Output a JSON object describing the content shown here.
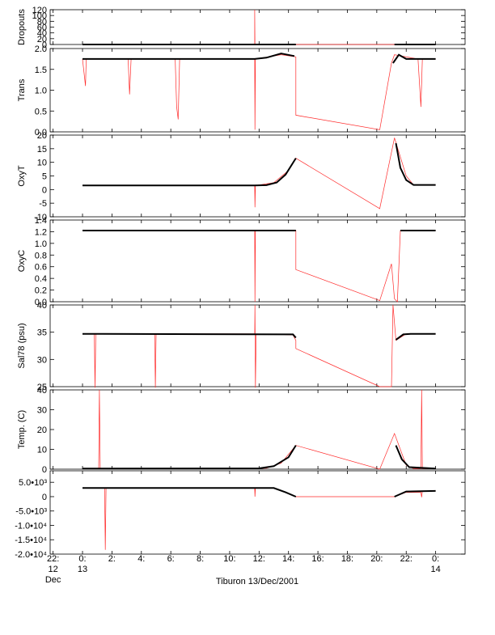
{
  "chart_data": {
    "type": "line",
    "title": "Tiburon 13/Dec/2001",
    "x_ticks": [
      {
        "h": -2,
        "line1": "22:",
        "line2": "12",
        "line3": "Dec"
      },
      {
        "h": 0,
        "line1": "0:",
        "line2": "13",
        "line3": ""
      },
      {
        "h": 2,
        "line1": "2:",
        "line2": "",
        "line3": ""
      },
      {
        "h": 4,
        "line1": "4:",
        "line2": "",
        "line3": ""
      },
      {
        "h": 6,
        "line1": "6:",
        "line2": "",
        "line3": ""
      },
      {
        "h": 8,
        "line1": "8:",
        "line2": "",
        "line3": ""
      },
      {
        "h": 10,
        "line1": "10:",
        "line2": "",
        "line3": ""
      },
      {
        "h": 12,
        "line1": "12:",
        "line2": "",
        "line3": ""
      },
      {
        "h": 14,
        "line1": "14:",
        "line2": "",
        "line3": ""
      },
      {
        "h": 16,
        "line1": "16:",
        "line2": "",
        "line3": ""
      },
      {
        "h": 18,
        "line1": "18:",
        "line2": "",
        "line3": ""
      },
      {
        "h": 20,
        "line1": "20:",
        "line2": "",
        "line3": ""
      },
      {
        "h": 22,
        "line1": "22:",
        "line2": "",
        "line3": ""
      },
      {
        "h": 24,
        "line1": "0:",
        "line2": "14",
        "line3": ""
      }
    ],
    "xlim": [
      -2.2,
      26
    ],
    "panels": [
      {
        "name": "dropouts",
        "ylabel": "Dropouts",
        "ylim": [
          0,
          120
        ],
        "ytick_labels": [
          "0",
          "20",
          "40",
          "60",
          "80",
          "100",
          "120"
        ],
        "ytick_values": [
          0,
          20,
          40,
          60,
          80,
          100,
          120
        ],
        "red": [
          [
            0,
            0
          ],
          [
            11.7,
            0
          ],
          [
            11.7,
            120
          ],
          [
            11.72,
            0
          ],
          [
            24,
            0
          ]
        ],
        "black": [
          [
            0,
            0
          ],
          [
            14.5,
            0
          ]
        ],
        "black2": [
          [
            21.2,
            0
          ],
          [
            24,
            0
          ]
        ]
      },
      {
        "name": "trans",
        "ylabel": "Trans",
        "ylim": [
          0,
          2
        ],
        "ytick_labels": [
          "0.0",
          "0.5",
          "1.0",
          "1.5",
          "2.0"
        ],
        "ytick_values": [
          0,
          0.5,
          1,
          1.5,
          2
        ],
        "red": [
          [
            0,
            1.75
          ],
          [
            0.2,
            1.1
          ],
          [
            0.25,
            1.75
          ],
          [
            3.1,
            1.75
          ],
          [
            3.2,
            0.9
          ],
          [
            3.3,
            1.75
          ],
          [
            6.3,
            1.75
          ],
          [
            6.4,
            0.6
          ],
          [
            6.5,
            0.3
          ],
          [
            6.6,
            1.75
          ],
          [
            11.7,
            1.75
          ],
          [
            11.72,
            0.05
          ],
          [
            11.75,
            1.75
          ],
          [
            13.5,
            1.85
          ],
          [
            14.5,
            1.8
          ],
          [
            14.5,
            0.4
          ],
          [
            20.2,
            0.05
          ],
          [
            21.0,
            1.65
          ],
          [
            21.2,
            1.85
          ],
          [
            22.8,
            1.75
          ],
          [
            23.0,
            0.6
          ],
          [
            23.1,
            1.75
          ],
          [
            24,
            1.75
          ]
        ],
        "black": [
          [
            0,
            1.75
          ],
          [
            11.7,
            1.75
          ],
          [
            12.5,
            1.78
          ],
          [
            13.5,
            1.88
          ],
          [
            14.4,
            1.82
          ]
        ],
        "black2": [
          [
            21.1,
            1.65
          ],
          [
            21.5,
            1.85
          ],
          [
            22,
            1.75
          ],
          [
            24,
            1.75
          ]
        ]
      },
      {
        "name": "oxyt",
        "ylabel": "OxyT",
        "ylim": [
          -10,
          20
        ],
        "ytick_labels": [
          "-10",
          "-5",
          "0",
          "5",
          "10",
          "15",
          "20"
        ],
        "ytick_values": [
          -10,
          -5,
          0,
          5,
          10,
          15,
          20
        ],
        "red": [
          [
            0,
            1.5
          ],
          [
            11.7,
            1.5
          ],
          [
            11.72,
            -6.5
          ],
          [
            11.75,
            1.5
          ],
          [
            13,
            2.5
          ],
          [
            14,
            7
          ],
          [
            14.5,
            11.5
          ],
          [
            20.2,
            -7
          ],
          [
            21.2,
            19
          ],
          [
            22,
            5
          ],
          [
            22.5,
            1.7
          ],
          [
            24,
            1.7
          ]
        ],
        "black": [
          [
            0,
            1.5
          ],
          [
            11.7,
            1.5
          ],
          [
            12.5,
            1.6
          ],
          [
            13.2,
            2.6
          ],
          [
            13.8,
            5.5
          ],
          [
            14.5,
            11.5
          ]
        ],
        "black2": [
          [
            21.3,
            17
          ],
          [
            21.6,
            8
          ],
          [
            22,
            3.5
          ],
          [
            22.5,
            1.7
          ],
          [
            24,
            1.7
          ]
        ]
      },
      {
        "name": "oxyc",
        "ylabel": "OxyC",
        "ylim": [
          0,
          1.4
        ],
        "ytick_labels": [
          "0.0",
          "0.2",
          "0.4",
          "0.6",
          "0.8",
          "1.0",
          "1.2",
          "1.4"
        ],
        "ytick_values": [
          0,
          0.2,
          0.4,
          0.6,
          0.8,
          1.0,
          1.2,
          1.4
        ],
        "red": [
          [
            0,
            1.22
          ],
          [
            11.7,
            1.22
          ],
          [
            11.72,
            0.0
          ],
          [
            11.75,
            1.22
          ],
          [
            14.5,
            1.22
          ],
          [
            14.5,
            0.55
          ],
          [
            20.2,
            0.02
          ],
          [
            21.0,
            0.65
          ],
          [
            21.2,
            0.05
          ],
          [
            21.4,
            0.0
          ],
          [
            21.6,
            1.22
          ],
          [
            24,
            1.22
          ]
        ],
        "black": [
          [
            0,
            1.22
          ],
          [
            14.5,
            1.22
          ]
        ],
        "black2": [
          [
            21.6,
            1.22
          ],
          [
            24,
            1.22
          ]
        ]
      },
      {
        "name": "sal78",
        "ylabel": "Sal78 (psu)",
        "ylim": [
          25,
          40
        ],
        "ytick_labels": [
          "25",
          "30",
          "35",
          "40"
        ],
        "ytick_values": [
          25,
          30,
          35,
          40
        ],
        "red": [
          [
            0,
            34.7
          ],
          [
            0.8,
            34.7
          ],
          [
            0.85,
            24.8
          ],
          [
            0.9,
            34.7
          ],
          [
            4.9,
            34.7
          ],
          [
            4.95,
            24.8
          ],
          [
            5.0,
            34.7
          ],
          [
            11.7,
            34.7
          ],
          [
            11.72,
            40
          ],
          [
            11.75,
            24.8
          ],
          [
            11.8,
            34.7
          ],
          [
            14.3,
            34.5
          ],
          [
            14.5,
            33.5
          ],
          [
            14.5,
            32
          ],
          [
            20.2,
            25
          ],
          [
            21,
            25
          ],
          [
            21.1,
            40
          ],
          [
            21.3,
            33.5
          ],
          [
            22,
            34.7
          ],
          [
            24,
            34.7
          ]
        ],
        "black": [
          [
            0,
            34.7
          ],
          [
            14.3,
            34.6
          ],
          [
            14.5,
            34.0
          ]
        ],
        "black2": [
          [
            21.3,
            33.6
          ],
          [
            21.8,
            34.6
          ],
          [
            22.3,
            34.7
          ],
          [
            24,
            34.7
          ]
        ]
      },
      {
        "name": "temp",
        "ylabel": "Temp. (C)",
        "ylim": [
          0,
          40
        ],
        "ytick_labels": [
          "0",
          "10",
          "20",
          "30",
          "40"
        ],
        "ytick_values": [
          0,
          10,
          20,
          30,
          40
        ],
        "red": [
          [
            0,
            0.3
          ],
          [
            1.1,
            0.3
          ],
          [
            1.15,
            40
          ],
          [
            1.2,
            0.3
          ],
          [
            11.7,
            0.3
          ],
          [
            12.5,
            0.5
          ],
          [
            13.5,
            3
          ],
          [
            14.5,
            12
          ],
          [
            20.2,
            0
          ],
          [
            21.2,
            18
          ],
          [
            22,
            2
          ],
          [
            22.5,
            0.3
          ],
          [
            23.0,
            0.3
          ],
          [
            23.05,
            40
          ],
          [
            23.1,
            0.3
          ],
          [
            24,
            0.3
          ]
        ],
        "black": [
          [
            0,
            0.3
          ],
          [
            12,
            0.4
          ],
          [
            13,
            1.5
          ],
          [
            14,
            6
          ],
          [
            14.5,
            12
          ]
        ],
        "black2": [
          [
            21.3,
            12
          ],
          [
            21.7,
            5
          ],
          [
            22.2,
            1
          ],
          [
            24,
            0.3
          ]
        ]
      },
      {
        "name": "bottom",
        "ylabel": "",
        "ylim": [
          -20000,
          9000
        ],
        "ytick_labels": [
          "-2.0•10⁴",
          "-1.5•10⁴",
          "-1.0•10⁴",
          "-5.0•10³",
          "0",
          "5.0•10³"
        ],
        "ytick_values": [
          -20000,
          -15000,
          -10000,
          -5000,
          0,
          5000
        ],
        "red": [
          [
            0,
            3000
          ],
          [
            1.5,
            3000
          ],
          [
            1.55,
            -18500
          ],
          [
            1.6,
            3000
          ],
          [
            11.7,
            3000
          ],
          [
            11.72,
            0
          ],
          [
            11.75,
            3000
          ],
          [
            13,
            3000
          ],
          [
            14,
            1200
          ],
          [
            14.5,
            0
          ],
          [
            20.2,
            0
          ],
          [
            21.2,
            0
          ],
          [
            22,
            1500
          ],
          [
            23,
            1500
          ],
          [
            23.05,
            -200
          ],
          [
            23.1,
            2000
          ],
          [
            24,
            2000
          ]
        ],
        "black": [
          [
            0,
            3000
          ],
          [
            13,
            3000
          ],
          [
            13.8,
            1500
          ],
          [
            14.5,
            0
          ]
        ],
        "black2": [
          [
            21.2,
            0
          ],
          [
            22,
            1800
          ],
          [
            24,
            2000
          ]
        ]
      }
    ]
  }
}
